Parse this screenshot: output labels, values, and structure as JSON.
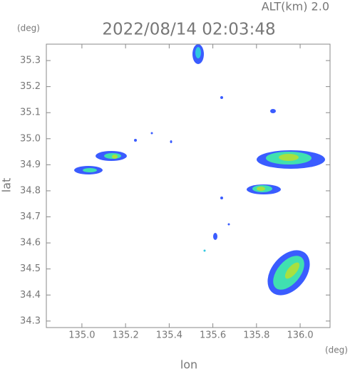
{
  "chart_data": {
    "type": "image",
    "title": "2022/08/14 02:03:48",
    "subtitle": "ALT(km)  2.0",
    "x_label": "lon",
    "y_label": "lat",
    "x_unit": "(deg)",
    "y_unit": "(deg)",
    "xlim": [
      134.837,
      136.137
    ],
    "ylim": [
      34.275,
      35.363
    ],
    "xticks": [
      {
        "value": 135,
        "label": "135.0"
      },
      135.2,
      135.4,
      135.6,
      135.8,
      {
        "value": 136,
        "label": "136.0"
      }
    ],
    "yticks": [
      34.3,
      34.4,
      34.5,
      34.6,
      34.7,
      34.8,
      34.9,
      {
        "value": 35,
        "label": "35.0"
      },
      35.1,
      35.2,
      35.3
    ]
  }
}
